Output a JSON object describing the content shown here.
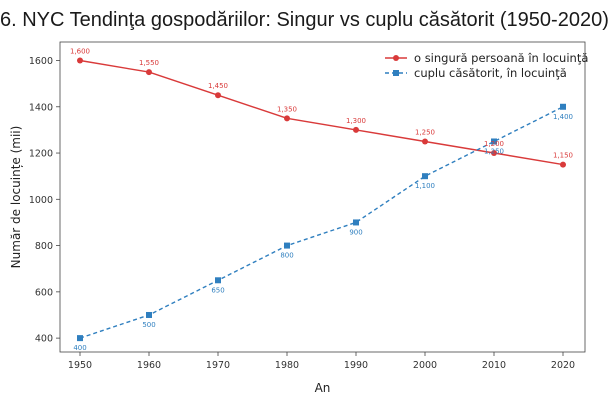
{
  "chart_data": {
    "type": "line",
    "title": "6. NYC Tendinţa gospodăriilor: Singur vs cuplu căsătorit (1950-2020)",
    "xlabel": "An",
    "ylabel": "Număr de locuințe (mii)",
    "x": [
      1950,
      1960,
      1970,
      1980,
      1990,
      2000,
      2010,
      2020
    ],
    "xticks": [
      "1950",
      "1960",
      "1970",
      "1980",
      "1990",
      "2000",
      "2010",
      "2020"
    ],
    "ylim": [
      340,
      1680
    ],
    "yticks": [
      "400",
      "600",
      "800",
      "1000",
      "1200",
      "1400",
      "1600"
    ],
    "ytick_values": [
      400,
      600,
      800,
      1000,
      1200,
      1400,
      1600
    ],
    "grid": true,
    "legend_position": "top-right",
    "series": [
      {
        "name": "o singură persoană în locuinţă",
        "values": [
          1600,
          1550,
          1450,
          1350,
          1300,
          1250,
          1200,
          1150
        ],
        "labels": [
          "1,600",
          "1,550",
          "1,450",
          "1,350",
          "1,300",
          "1,250",
          "1,200",
          "1,150"
        ],
        "color": "#d93a3a",
        "line_style": "solid",
        "marker": "circle"
      },
      {
        "name": "cuplu căsătorit, în locuinţă",
        "values": [
          400,
          500,
          650,
          800,
          900,
          1100,
          1250,
          1400
        ],
        "labels": [
          "400",
          "500",
          "650",
          "800",
          "900",
          "1,100",
          "1,250",
          "1,400"
        ],
        "color": "#2f7fbf",
        "line_style": "dashed",
        "marker": "square"
      }
    ]
  }
}
